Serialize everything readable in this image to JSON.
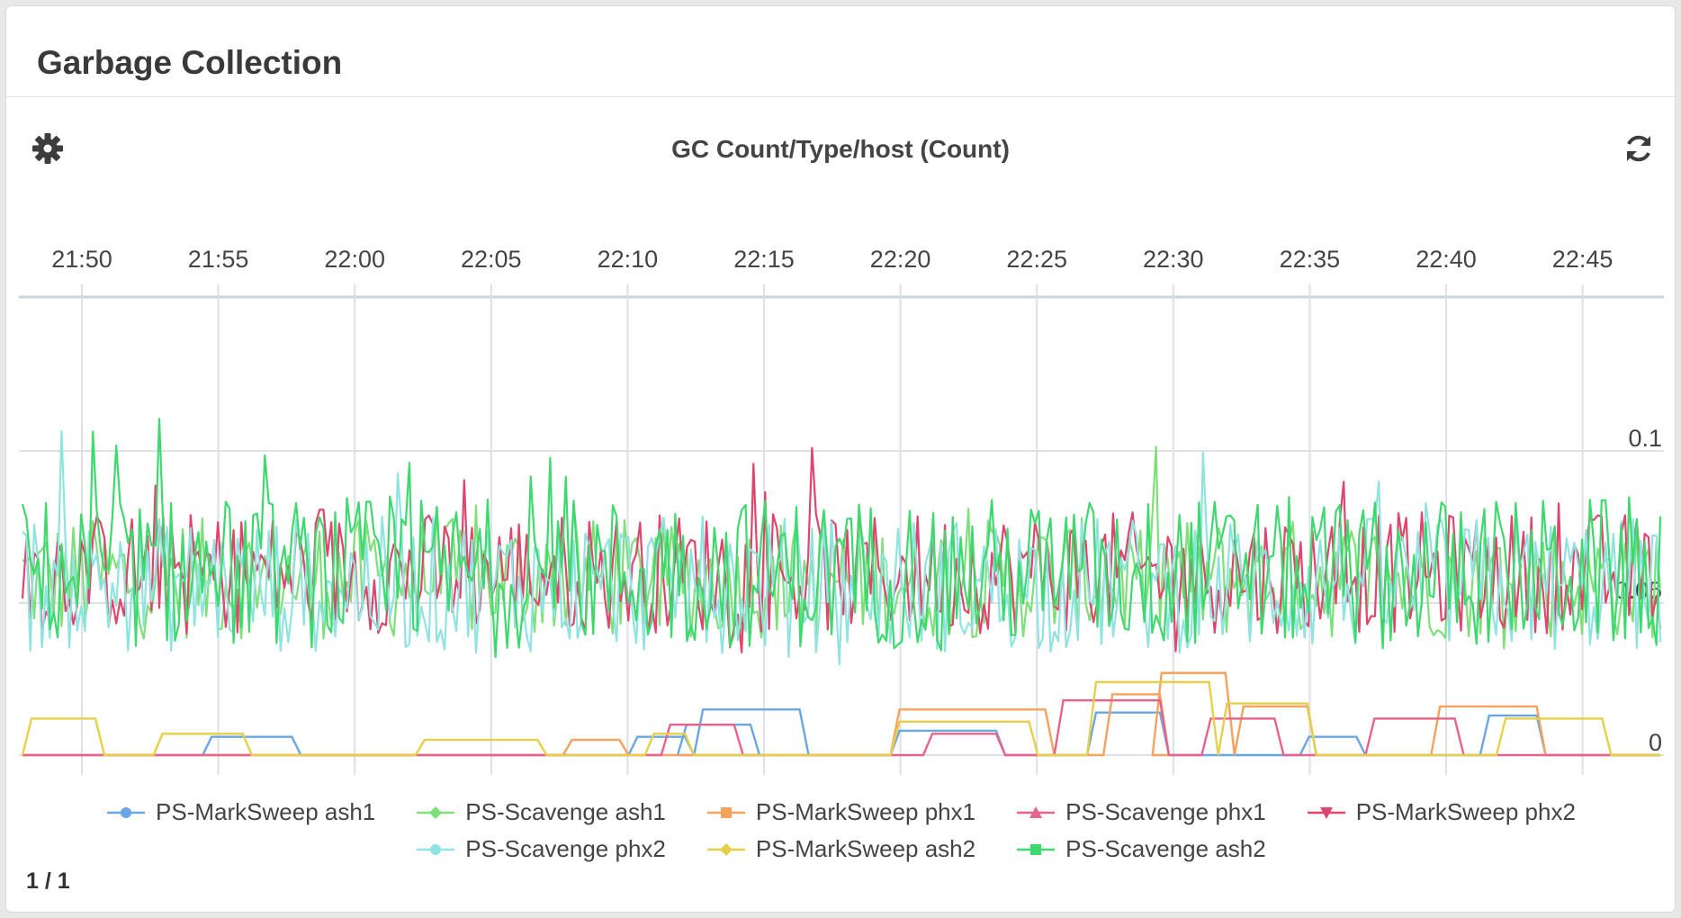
{
  "panel": {
    "title": "Garbage Collection",
    "pager": "1 / 1"
  },
  "chart_data": {
    "type": "line",
    "title": "GC Count/Type/host (Count)",
    "x_ticks": [
      "21:50",
      "21:55",
      "22:00",
      "22:05",
      "22:10",
      "22:15",
      "22:20",
      "22:25",
      "22:30",
      "22:35",
      "22:40",
      "22:45"
    ],
    "y_ticks": [
      "0.1",
      "0.05",
      "0"
    ],
    "ylim": [
      0,
      0.15
    ],
    "grid": true,
    "legend_position": "bottom",
    "series": [
      {
        "name": "PS-MarkSweep ash1",
        "color": "#6aa6e6",
        "marker": "circle"
      },
      {
        "name": "PS-Scavenge ash1",
        "color": "#7fe07a",
        "marker": "diamond"
      },
      {
        "name": "PS-MarkSweep phx1",
        "color": "#f7a25c",
        "marker": "square"
      },
      {
        "name": "PS-Scavenge phx1",
        "color": "#e8638c",
        "marker": "triangle-up"
      },
      {
        "name": "PS-MarkSweep phx2",
        "color": "#e0456e",
        "marker": "triangle-down"
      },
      {
        "name": "PS-Scavenge phx2",
        "color": "#8fe3e0",
        "marker": "circle"
      },
      {
        "name": "PS-MarkSweep ash2",
        "color": "#e6d04a",
        "marker": "diamond"
      },
      {
        "name": "PS-Scavenge ash2",
        "color": "#3ed96e",
        "marker": "square"
      }
    ]
  },
  "icons": {
    "settings": "gear-icon",
    "refresh": "refresh-icon"
  }
}
